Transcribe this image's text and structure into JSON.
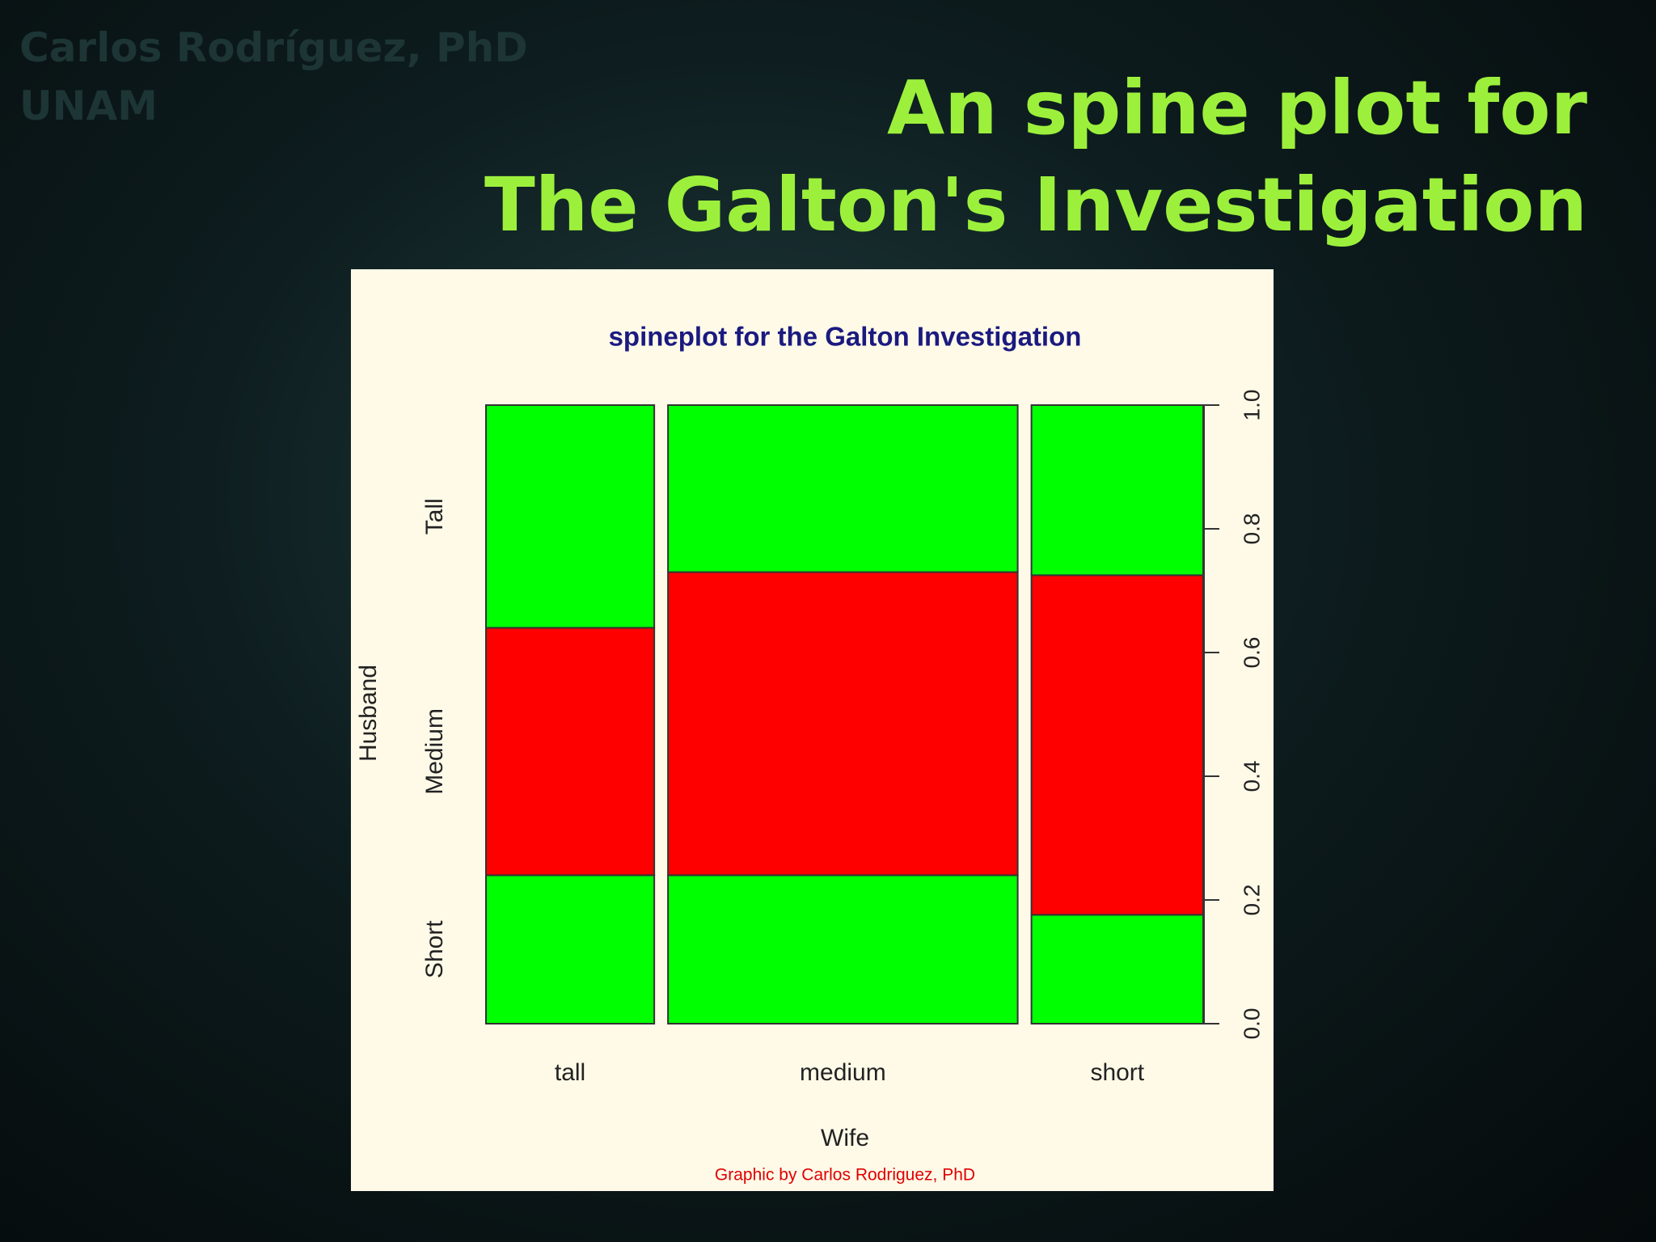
{
  "slide": {
    "author": "Carlos Rodríguez, PhD",
    "affiliation": "UNAM",
    "title_line1": "An spine plot for",
    "title_line2": "The Galton's Investigation"
  },
  "chart_data": {
    "type": "spine",
    "title": "spineplot for the Galton Investigation",
    "x_label": "Wife",
    "y_label": "Husband",
    "caption": "Graphic by Carlos Rodriguez, PhD",
    "categories": [
      "tall",
      "medium",
      "short"
    ],
    "widths": [
      0.244,
      0.507,
      0.249
    ],
    "series": [
      {
        "name": "Short",
        "color": "#00ff00",
        "values": [
          0.24,
          0.24,
          0.176
        ]
      },
      {
        "name": "Medium",
        "color": "#ff0000",
        "values": [
          0.4,
          0.49,
          0.549
        ]
      },
      {
        "name": "Tall",
        "color": "#00ff00",
        "values": [
          0.36,
          0.27,
          0.275
        ]
      }
    ],
    "ylim": [
      0,
      1
    ],
    "yticks": [
      {
        "value": 0,
        "label": "0.0"
      },
      0.2,
      0.4,
      0.6,
      0.8,
      {
        "value": 1,
        "label": "1.0"
      }
    ]
  }
}
